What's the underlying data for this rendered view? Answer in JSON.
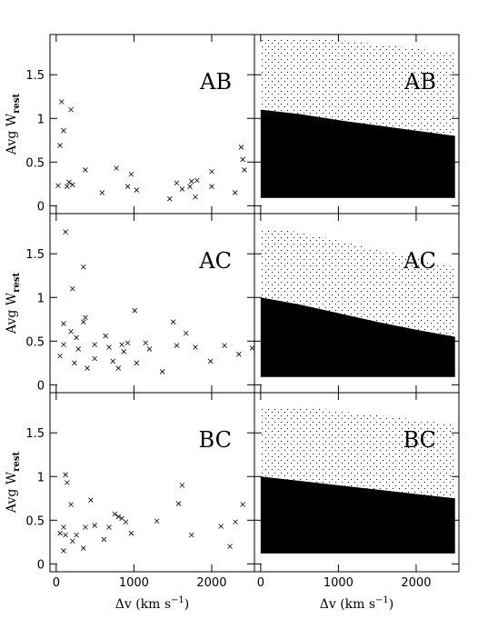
{
  "chart_data": [
    {
      "type": "scatter",
      "label": "AB",
      "ylabel": "Avg W",
      "ylabel_sub": "rest",
      "xlim": [
        -80,
        2550
      ],
      "ylim": [
        -0.09,
        1.96
      ],
      "xticks": [
        0,
        1000,
        2000
      ],
      "yticks": [
        0,
        0.5,
        1,
        1.5
      ],
      "x": [
        50,
        70,
        95,
        25,
        140,
        165,
        210,
        190,
        375,
        590,
        775,
        920,
        965,
        1035,
        1460,
        1550,
        1620,
        1720,
        1740,
        1790,
        1810,
        2000,
        2000,
        2300,
        2380,
        2400,
        2420
      ],
      "y": [
        0.69,
        1.19,
        0.86,
        0.23,
        0.22,
        0.27,
        0.24,
        1.1,
        0.41,
        0.15,
        0.43,
        0.22,
        0.36,
        0.18,
        0.08,
        0.26,
        0.19,
        0.22,
        0.28,
        0.1,
        0.29,
        0.39,
        0.22,
        0.15,
        0.67,
        0.53,
        0.41
      ]
    },
    {
      "type": "density",
      "label": "AB",
      "xlim": [
        -80,
        2550
      ],
      "ylim": [
        -0.09,
        1.96
      ],
      "xticks": [
        0,
        1000,
        2000
      ],
      "yticks": [
        0,
        0.5,
        1,
        1.5
      ],
      "x": [
        0,
        500,
        1000,
        1500,
        2000,
        2500
      ],
      "lower": [
        0.1,
        0.1,
        0.1,
        0.1,
        0.1,
        0.1
      ],
      "upper": [
        1.1,
        1.05,
        0.98,
        0.92,
        0.86,
        0.8
      ],
      "sparse_upper": [
        1.9,
        1.9,
        1.9,
        1.85,
        1.8,
        1.75
      ]
    },
    {
      "type": "scatter",
      "label": "AC",
      "ylabel": "Avg W",
      "ylabel_sub": "rest",
      "xlim": [
        -80,
        2550
      ],
      "ylim": [
        -0.09,
        1.96
      ],
      "xticks": [
        0,
        1000,
        2000
      ],
      "yticks": [
        0,
        0.5,
        1,
        1.5
      ],
      "x": [
        120,
        350,
        210,
        95,
        50,
        95,
        190,
        260,
        285,
        235,
        350,
        375,
        400,
        495,
        495,
        635,
        680,
        730,
        800,
        845,
        870,
        920,
        1010,
        1035,
        1150,
        1200,
        1365,
        1505,
        1550,
        1670,
        1790,
        1985,
        2165,
        2350,
        2520
      ],
      "y": [
        1.75,
        1.35,
        1.1,
        0.7,
        0.33,
        0.46,
        0.61,
        0.54,
        0.41,
        0.25,
        0.72,
        0.77,
        0.19,
        0.46,
        0.3,
        0.56,
        0.43,
        0.27,
        0.19,
        0.46,
        0.38,
        0.48,
        0.85,
        0.25,
        0.48,
        0.41,
        0.15,
        0.72,
        0.45,
        0.59,
        0.43,
        0.27,
        0.45,
        0.35,
        0.42
      ]
    },
    {
      "type": "density",
      "label": "AC",
      "xlim": [
        -80,
        2550
      ],
      "ylim": [
        -0.09,
        1.96
      ],
      "xticks": [
        0,
        1000,
        2000
      ],
      "yticks": [
        0,
        0.5,
        1,
        1.5
      ],
      "x": [
        0,
        500,
        1000,
        1500,
        2000,
        2500
      ],
      "lower": [
        0.1,
        0.1,
        0.1,
        0.1,
        0.1,
        0.1
      ],
      "upper": [
        1.0,
        0.92,
        0.82,
        0.72,
        0.63,
        0.55
      ],
      "sparse_upper": [
        1.8,
        1.75,
        1.65,
        1.55,
        1.45,
        1.35
      ]
    },
    {
      "type": "scatter",
      "label": "BC",
      "ylabel": "Avg W",
      "ylabel_sub": "rest",
      "xlabel": "Δv (km s",
      "xlabel_sup": "−1",
      "xlabel_end": ")",
      "xlim": [
        -80,
        2550
      ],
      "ylim": [
        -0.09,
        1.96
      ],
      "xticks": [
        0,
        1000,
        2000
      ],
      "yticks": [
        0,
        0.5,
        1,
        1.5
      ],
      "x": [
        120,
        140,
        190,
        95,
        50,
        120,
        95,
        210,
        260,
        350,
        375,
        445,
        495,
        615,
        680,
        755,
        800,
        845,
        895,
        965,
        1295,
        1620,
        1575,
        1740,
        2120,
        2235,
        2305,
        2400
      ],
      "y": [
        1.02,
        0.93,
        0.68,
        0.42,
        0.35,
        0.33,
        0.15,
        0.26,
        0.33,
        0.18,
        0.42,
        0.73,
        0.44,
        0.28,
        0.42,
        0.57,
        0.54,
        0.52,
        0.48,
        0.35,
        0.49,
        0.9,
        0.69,
        0.33,
        0.43,
        0.2,
        0.48,
        0.68
      ]
    },
    {
      "type": "density",
      "label": "BC",
      "xlabel": "Δv (km s",
      "xlabel_sup": "−1",
      "xlabel_end": ")",
      "xlim": [
        -80,
        2550
      ],
      "ylim": [
        -0.09,
        1.96
      ],
      "xticks": [
        0,
        1000,
        2000
      ],
      "yticks": [
        0,
        0.5,
        1,
        1.5
      ],
      "x": [
        0,
        500,
        1000,
        1500,
        2000,
        2500
      ],
      "lower": [
        0.13,
        0.13,
        0.13,
        0.13,
        0.13,
        0.13
      ],
      "upper": [
        1.0,
        0.95,
        0.9,
        0.85,
        0.8,
        0.75
      ],
      "sparse_upper": [
        1.8,
        1.8,
        1.75,
        1.7,
        1.65,
        1.6
      ]
    }
  ]
}
